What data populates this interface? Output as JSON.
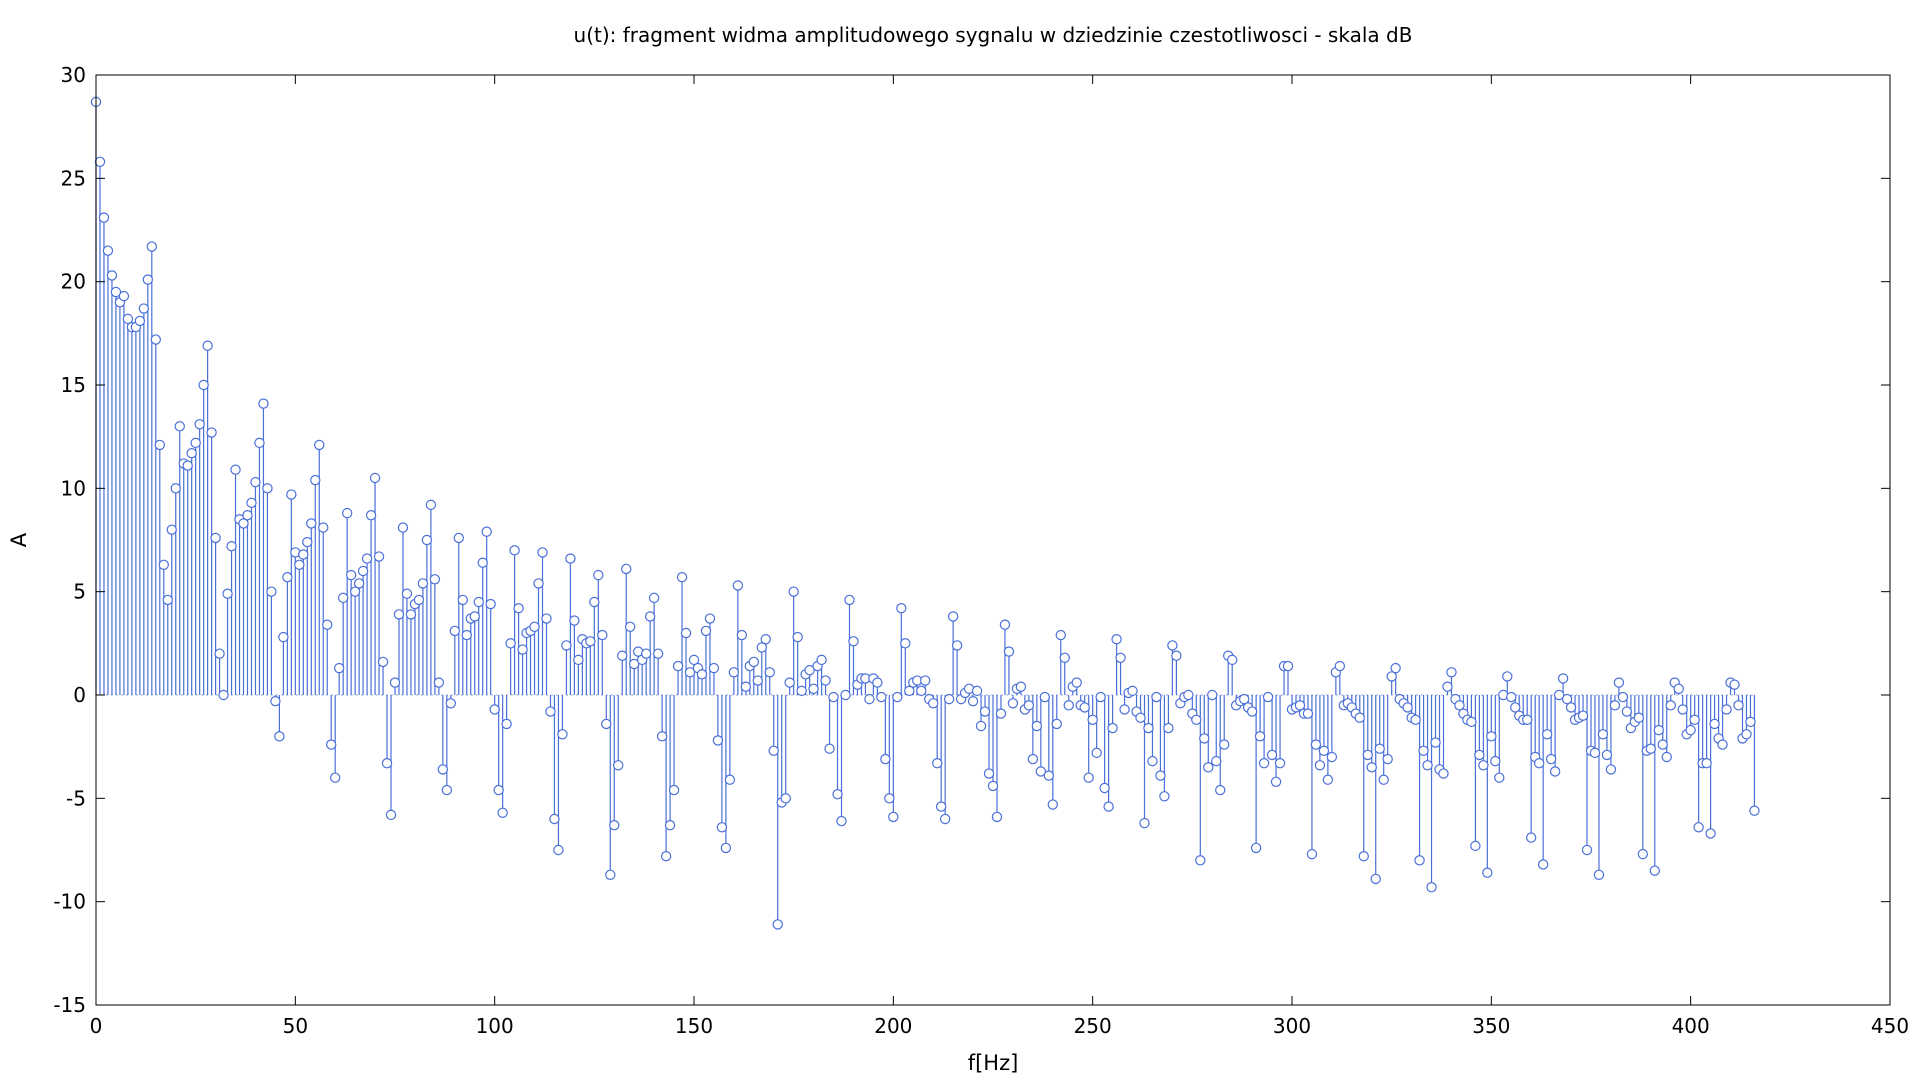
{
  "chart_data": {
    "type": "stem",
    "title": "u(t): fragment widma amplitudowego sygnalu w dziedzinie czestotliwosci - skala dB",
    "xlabel": "f[Hz]",
    "ylabel": "A",
    "xlim": [
      0,
      450
    ],
    "ylim": [
      -15,
      30
    ],
    "x_ticks": [
      0,
      50,
      100,
      150,
      200,
      250,
      300,
      350,
      400,
      450
    ],
    "y_ticks": [
      -15,
      -10,
      -5,
      0,
      5,
      10,
      15,
      20,
      25,
      30
    ],
    "x_tick_labels": [
      "0",
      "50",
      "100",
      "150",
      "200",
      "250",
      "300",
      "350",
      "400",
      "450"
    ],
    "y_tick_labels": [
      "-15",
      "-10",
      "-5",
      "0",
      "5",
      "10",
      "15",
      "20",
      "25",
      "30"
    ],
    "grid": false,
    "baseline": 0,
    "series_color": "#4a6fd8",
    "x_start": 0,
    "x_step": 1,
    "values": [
      28.7,
      25.8,
      23.1,
      21.5,
      20.3,
      19.5,
      19.0,
      19.3,
      18.2,
      17.8,
      17.8,
      18.1,
      18.7,
      20.1,
      21.7,
      17.2,
      12.1,
      6.3,
      4.6,
      8.0,
      10.0,
      13.0,
      11.2,
      11.1,
      11.7,
      12.2,
      13.1,
      15.0,
      16.9,
      12.7,
      7.6,
      2.0,
      0.0,
      4.9,
      7.2,
      10.9,
      8.5,
      8.3,
      8.7,
      9.3,
      10.3,
      12.2,
      14.1,
      10.0,
      5.0,
      -0.3,
      -2.0,
      2.8,
      5.7,
      9.7,
      6.9,
      6.3,
      6.8,
      7.4,
      8.3,
      10.4,
      12.1,
      8.1,
      3.4,
      -2.4,
      -4.0,
      1.3,
      4.7,
      8.8,
      5.8,
      5.0,
      5.4,
      6.0,
      6.6,
      8.7,
      10.5,
      6.7,
      1.6,
      -3.3,
      -5.8,
      0.6,
      3.9,
      8.1,
      4.9,
      3.9,
      4.4,
      4.6,
      5.4,
      7.5,
      9.2,
      5.6,
      0.6,
      -3.6,
      -4.6,
      -0.4,
      3.1,
      7.6,
      4.6,
      2.9,
      3.7,
      3.8,
      4.5,
      6.4,
      7.9,
      4.4,
      -0.7,
      -4.6,
      -5.7,
      -1.4,
      2.5,
      7.0,
      4.2,
      2.2,
      3.0,
      3.1,
      3.3,
      5.4,
      6.9,
      3.7,
      -0.8,
      -6.0,
      -7.5,
      -1.9,
      2.4,
      6.6,
      3.6,
      1.7,
      2.7,
      2.5,
      2.6,
      4.5,
      5.8,
      2.9,
      -1.4,
      -8.7,
      -6.3,
      -3.4,
      1.9,
      6.1,
      3.3,
      1.5,
      2.1,
      1.7,
      2.0,
      3.8,
      4.7,
      2.0,
      -2.0,
      -7.8,
      -6.3,
      -4.6,
      1.4,
      5.7,
      3.0,
      1.1,
      1.7,
      1.3,
      1.0,
      3.1,
      3.7,
      1.3,
      -2.2,
      -6.4,
      -7.4,
      -4.1,
      1.1,
      5.3,
      2.9,
      0.4,
      1.4,
      1.6,
      0.7,
      2.3,
      2.7,
      1.1,
      -2.7,
      -11.1,
      -5.2,
      -5.0,
      0.6,
      5.0,
      2.8,
      0.2,
      1.0,
      1.2,
      0.3,
      1.4,
      1.7,
      0.7,
      -2.6,
      -0.1,
      -4.8,
      -6.1,
      0.0,
      4.6,
      2.6,
      0.5,
      0.8,
      0.8,
      -0.2,
      0.8,
      0.6,
      -0.1,
      -3.1,
      -5.0,
      -5.9,
      -0.1,
      4.2,
      2.5,
      0.2,
      0.6,
      0.7,
      0.2,
      0.7,
      -0.2,
      -0.4,
      -3.3,
      -5.4,
      -6.0,
      -0.2,
      3.8,
      2.4,
      -0.2,
      0.1,
      0.3,
      -0.3,
      0.2,
      -1.5,
      -0.8,
      -3.8,
      -4.4,
      -5.9,
      -0.9,
      3.4,
      2.1,
      -0.4,
      0.3,
      0.4,
      -0.7,
      -0.5,
      -3.1,
      -1.5,
      -3.7,
      -0.1,
      -3.9,
      -5.3,
      -1.4,
      2.9,
      1.8,
      -0.5,
      0.4,
      0.6,
      -0.5,
      -0.6,
      -4.0,
      -1.2,
      -2.8,
      -0.1,
      -4.5,
      -5.4,
      -1.6,
      2.7,
      1.8,
      -0.7,
      0.1,
      0.2,
      -0.8,
      -1.1,
      -6.2,
      -1.6,
      -3.2,
      -0.1,
      -3.9,
      -4.9,
      -1.6,
      2.4,
      1.9,
      -0.4,
      -0.1,
      0.0,
      -0.9,
      -1.2,
      -8.0,
      -2.1,
      -3.5,
      0.0,
      -3.2,
      -4.6,
      -2.4,
      1.9,
      1.7,
      -0.5,
      -0.3,
      -0.2,
      -0.6,
      -0.8,
      -7.4,
      -2.0,
      -3.3,
      -0.1,
      -2.9,
      -4.2,
      -3.3,
      1.4,
      1.4,
      -0.7,
      -0.6,
      -0.5,
      -0.9,
      -0.9,
      -7.7,
      -2.4,
      -3.4,
      -2.7,
      -4.1,
      -3.0,
      1.1,
      1.4,
      -0.5,
      -0.4,
      -0.6,
      -0.9,
      -1.1,
      -7.8,
      -2.9,
      -3.5,
      -8.9,
      -2.6,
      -4.1,
      -3.1,
      0.9,
      1.3,
      -0.2,
      -0.4,
      -0.6,
      -1.1,
      -1.2,
      -8.0,
      -2.7,
      -3.4,
      -9.3,
      -2.3,
      -3.6,
      -3.8,
      0.4,
      1.1,
      -0.2,
      -0.5,
      -0.9,
      -1.2,
      -1.3,
      -7.3,
      -2.9,
      -3.4,
      -8.6,
      -2.0,
      -3.2,
      -4.0,
      0.0,
      0.9,
      -0.1,
      -0.6,
      -1.0,
      -1.2,
      -1.2,
      -6.9,
      -3.0,
      -3.3,
      -8.2,
      -1.9,
      -3.1,
      -3.7,
      0.0,
      0.8,
      -0.2,
      -0.6,
      -1.2,
      -1.1,
      -1.0,
      -7.5,
      -2.7,
      -2.8,
      -8.7,
      -1.9,
      -2.9,
      -3.6,
      -0.5,
      0.6,
      -0.1,
      -0.8,
      -1.6,
      -1.3,
      -1.1,
      -7.7,
      -2.7,
      -2.6,
      -8.5,
      -1.7,
      -2.4,
      -3.0,
      -0.5,
      0.6,
      0.3,
      -0.7,
      -1.9,
      -1.7,
      -1.2,
      -6.4,
      -3.3,
      -3.3,
      -6.7,
      -1.4,
      -2.1,
      -2.4,
      -0.7,
      0.6,
      0.5,
      -0.5,
      -2.1,
      -1.9,
      -1.3,
      -5.6
    ]
  }
}
